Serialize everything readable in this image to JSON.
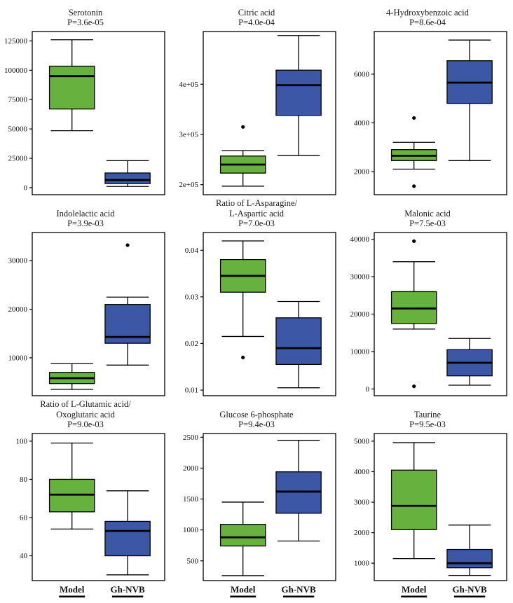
{
  "figure": {
    "groups": [
      "Model",
      "Gh-NVB"
    ],
    "x_axis_note": "group labels shown only under bottom row, bold with underline"
  },
  "style": {
    "green": "#67b13e",
    "blue": "#3c57a6",
    "stroke": "#000000",
    "background": "#ffffff"
  },
  "chart_data": [
    {
      "type": "boxplot",
      "title_lines": [
        "Serotonin"
      ],
      "pvalue": "P=3.6e-05",
      "ylim": [
        -6000,
        133000
      ],
      "yticks": [
        0,
        25000,
        50000,
        75000,
        100000,
        125000
      ],
      "ytick_labels": [
        "0",
        "25000",
        "50000",
        "75000",
        "100000",
        "125000"
      ],
      "categories": [
        "Model",
        "Gh-NVB"
      ],
      "series": [
        {
          "name": "Model",
          "color": "green",
          "whisker_low": 48500,
          "q1": 67000,
          "median": 95000,
          "q3": 103500,
          "whisker_high": 126000,
          "outliers": []
        },
        {
          "name": "Gh-NVB",
          "color": "blue",
          "whisker_low": 1000,
          "q1": 3500,
          "median": 6500,
          "q3": 12500,
          "whisker_high": 23000,
          "outliers": []
        }
      ]
    },
    {
      "type": "boxplot",
      "title_lines": [
        "Citric acid"
      ],
      "pvalue": "P=4.0e-04",
      "ylim": [
        180000,
        505000
      ],
      "yticks": [
        200000,
        300000,
        400000
      ],
      "ytick_labels": [
        "2e+05",
        "3e+05",
        "4e+05"
      ],
      "categories": [
        "Model",
        "Gh-NVB"
      ],
      "series": [
        {
          "name": "Model",
          "color": "green",
          "whisker_low": 197000,
          "q1": 223000,
          "median": 240000,
          "q3": 257000,
          "whisker_high": 268000,
          "outliers": [
            315000
          ]
        },
        {
          "name": "Gh-NVB",
          "color": "blue",
          "whisker_low": 258000,
          "q1": 338000,
          "median": 398000,
          "q3": 428000,
          "whisker_high": 497000,
          "outliers": []
        }
      ]
    },
    {
      "type": "boxplot",
      "title_lines": [
        "4-Hydroxybenzoic acid"
      ],
      "pvalue": "P=8.6e-04",
      "ylim": [
        1050,
        7750
      ],
      "yticks": [
        2000,
        4000,
        6000
      ],
      "ytick_labels": [
        "2000",
        "4000",
        "6000"
      ],
      "categories": [
        "Model",
        "Gh-NVB"
      ],
      "series": [
        {
          "name": "Model",
          "color": "green",
          "whisker_low": 2100,
          "q1": 2450,
          "median": 2650,
          "q3": 2900,
          "whisker_high": 3200,
          "outliers": [
            4200,
            1400
          ]
        },
        {
          "name": "Gh-NVB",
          "color": "blue",
          "whisker_low": 2450,
          "q1": 4800,
          "median": 5650,
          "q3": 6550,
          "whisker_high": 7400,
          "outliers": []
        }
      ]
    },
    {
      "type": "boxplot",
      "title_lines": [
        "Indolelactic acid"
      ],
      "pvalue": "P=3.9e-03",
      "ylim": [
        2200,
        35800
      ],
      "yticks": [
        10000,
        20000,
        30000
      ],
      "ytick_labels": [
        "10000",
        "20000",
        "30000"
      ],
      "categories": [
        "Model",
        "Gh-NVB"
      ],
      "series": [
        {
          "name": "Model",
          "color": "green",
          "whisker_low": 3500,
          "q1": 4700,
          "median": 5800,
          "q3": 7000,
          "whisker_high": 8800,
          "outliers": []
        },
        {
          "name": "Gh-NVB",
          "color": "blue",
          "whisker_low": 8500,
          "q1": 13000,
          "median": 14300,
          "q3": 21000,
          "whisker_high": 22500,
          "outliers": [
            33200
          ]
        }
      ]
    },
    {
      "type": "boxplot",
      "title_lines": [
        "Ratio of L-Asparagine/",
        "L-Aspartic acid"
      ],
      "pvalue": "P=7.0e-03",
      "ylim": [
        0.0088,
        0.0438
      ],
      "yticks": [
        0.01,
        0.02,
        0.03,
        0.04
      ],
      "ytick_labels": [
        "0.01",
        "0.02",
        "0.03",
        "0.04"
      ],
      "categories": [
        "Model",
        "Gh-NVB"
      ],
      "series": [
        {
          "name": "Model",
          "color": "green",
          "whisker_low": 0.0215,
          "q1": 0.031,
          "median": 0.0345,
          "q3": 0.038,
          "whisker_high": 0.042,
          "outliers": [
            0.017
          ]
        },
        {
          "name": "Gh-NVB",
          "color": "blue",
          "whisker_low": 0.0105,
          "q1": 0.0155,
          "median": 0.019,
          "q3": 0.0255,
          "whisker_high": 0.029,
          "outliers": []
        }
      ]
    },
    {
      "type": "boxplot",
      "title_lines": [
        "Malonic acid"
      ],
      "pvalue": "P=7.5e-03",
      "ylim": [
        -1800,
        41800
      ],
      "yticks": [
        0,
        10000,
        20000,
        30000,
        40000
      ],
      "ytick_labels": [
        "0",
        "10000",
        "20000",
        "30000",
        "40000"
      ],
      "categories": [
        "Model",
        "Gh-NVB"
      ],
      "series": [
        {
          "name": "Model",
          "color": "green",
          "whisker_low": 16000,
          "q1": 17500,
          "median": 21500,
          "q3": 26000,
          "whisker_high": 34000,
          "outliers": [
            39500,
            700
          ]
        },
        {
          "name": "Gh-NVB",
          "color": "blue",
          "whisker_low": 1000,
          "q1": 3500,
          "median": 7000,
          "q3": 10500,
          "whisker_high": 13500,
          "outliers": []
        }
      ]
    },
    {
      "type": "boxplot",
      "title_lines": [
        "Ratio of L-Glutamic acid/",
        "Oxoglutaric acid"
      ],
      "pvalue": "P=9.0e-03",
      "ylim": [
        27,
        104
      ],
      "yticks": [
        40,
        60,
        80,
        100
      ],
      "ytick_labels": [
        "40",
        "60",
        "80",
        "100"
      ],
      "categories": [
        "Model",
        "Gh-NVB"
      ],
      "series": [
        {
          "name": "Model",
          "color": "green",
          "whisker_low": 54,
          "q1": 63,
          "median": 72,
          "q3": 80,
          "whisker_high": 99,
          "outliers": []
        },
        {
          "name": "Gh-NVB",
          "color": "blue",
          "whisker_low": 30,
          "q1": 40,
          "median": 53,
          "q3": 58,
          "whisker_high": 74,
          "outliers": []
        }
      ]
    },
    {
      "type": "boxplot",
      "title_lines": [
        "Glucose 6-phosphate"
      ],
      "pvalue": "P=9.4e-03",
      "ylim": [
        180,
        2560
      ],
      "yticks": [
        500,
        1000,
        1500,
        2000,
        2500
      ],
      "ytick_labels": [
        "500",
        "1000",
        "1500",
        "2000",
        "2500"
      ],
      "categories": [
        "Model",
        "Gh-NVB"
      ],
      "series": [
        {
          "name": "Model",
          "color": "green",
          "whisker_low": 260,
          "q1": 740,
          "median": 880,
          "q3": 1090,
          "whisker_high": 1450,
          "outliers": []
        },
        {
          "name": "Gh-NVB",
          "color": "blue",
          "whisker_low": 820,
          "q1": 1270,
          "median": 1620,
          "q3": 1940,
          "whisker_high": 2450,
          "outliers": []
        }
      ]
    },
    {
      "type": "boxplot",
      "title_lines": [
        "Taurine"
      ],
      "pvalue": "P=9.5e-03",
      "ylim": [
        430,
        5250
      ],
      "yticks": [
        1000,
        2000,
        3000,
        4000,
        5000
      ],
      "ytick_labels": [
        "1000",
        "2000",
        "3000",
        "4000",
        "5000"
      ],
      "categories": [
        "Model",
        "Gh-NVB"
      ],
      "series": [
        {
          "name": "Model",
          "color": "green",
          "whisker_low": 1150,
          "q1": 2100,
          "median": 2880,
          "q3": 4050,
          "whisker_high": 4950,
          "outliers": []
        },
        {
          "name": "Gh-NVB",
          "color": "blue",
          "whisker_low": 600,
          "q1": 850,
          "median": 1000,
          "q3": 1450,
          "whisker_high": 2250,
          "outliers": []
        }
      ]
    }
  ]
}
